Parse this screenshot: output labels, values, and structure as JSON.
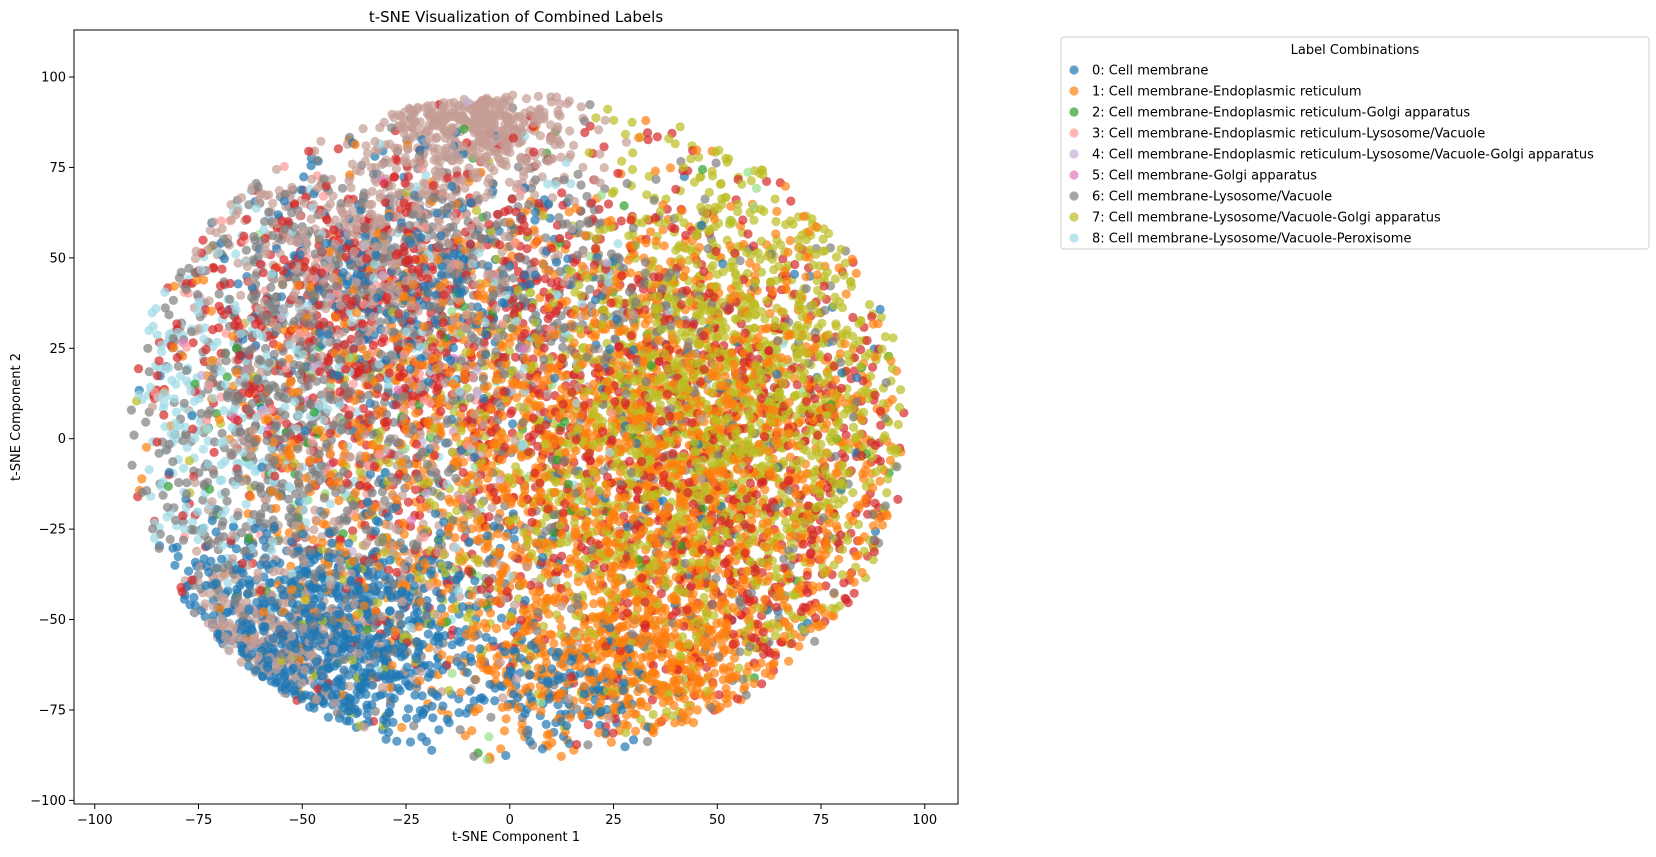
{
  "chart_data": {
    "type": "scatter",
    "title": "t-SNE Visualization of Combined Labels",
    "xlabel": "t-SNE Component 1",
    "ylabel": "t-SNE Component 2",
    "xlim": [
      -105,
      108
    ],
    "ylim": [
      -101,
      113
    ],
    "x_ticks": [
      -100,
      -75,
      -50,
      -25,
      0,
      25,
      50,
      75,
      100
    ],
    "y_ticks": [
      -100,
      -75,
      -50,
      -25,
      0,
      25,
      50,
      75,
      100
    ],
    "grid": false,
    "legend": {
      "title": "Label Combinations",
      "placement": "outside-upper-right"
    },
    "marker_alpha": 0.7,
    "series": [
      {
        "name": "0: Cell membrane",
        "color": "#1f77b4",
        "clusters": [
          {
            "cx": -48,
            "cy": -58,
            "sx": 22,
            "sy": 16,
            "n": 900
          },
          {
            "cx": -25,
            "cy": 45,
            "sx": 20,
            "sy": 15,
            "n": 300
          },
          {
            "cx": 15,
            "cy": -70,
            "sx": 10,
            "sy": 8,
            "n": 120
          },
          {
            "cx": 0,
            "cy": 0,
            "sx": 50,
            "sy": 45,
            "n": 200
          }
        ]
      },
      {
        "name": "1: Cell membrane-Endoplasmic reticulum",
        "color": "#ff7f0e",
        "clusters": [
          {
            "cx": 40,
            "cy": -10,
            "sx": 30,
            "sy": 35,
            "n": 1600
          },
          {
            "cx": -20,
            "cy": 0,
            "sx": 30,
            "sy": 30,
            "n": 600
          },
          {
            "cx": 30,
            "cy": -60,
            "sx": 20,
            "sy": 12,
            "n": 500
          }
        ]
      },
      {
        "name": "2: Cell membrane-Endoplasmic reticulum-Golgi apparatus",
        "color": "#2ca02c",
        "clusters": [
          {
            "cx": 0,
            "cy": 10,
            "sx": 55,
            "sy": 50,
            "n": 90
          }
        ]
      },
      {
        "name": "3: Cell membrane-Endoplasmic reticulum-Lysosome/Vacuole",
        "color": "#ff9896",
        "clusters": [
          {
            "cx": -35,
            "cy": 30,
            "sx": 30,
            "sy": 30,
            "n": 120
          }
        ]
      },
      {
        "name": "4: Cell membrane-Endoplasmic reticulum-Lysosome/Vacuole-Golgi apparatus",
        "color": "#c5b0d5",
        "clusters": [
          {
            "cx": -30,
            "cy": 20,
            "sx": 35,
            "sy": 35,
            "n": 40
          }
        ]
      },
      {
        "name": "5: Cell membrane-Golgi apparatus",
        "color": "#e377c2",
        "clusters": [
          {
            "cx": -55,
            "cy": 20,
            "sx": 25,
            "sy": 25,
            "n": 15
          }
        ]
      },
      {
        "name": "6: Cell membrane-Lysosome/Vacuole",
        "color": "#7f7f7f",
        "clusters": [
          {
            "cx": -55,
            "cy": 5,
            "sx": 22,
            "sy": 35,
            "n": 700
          },
          {
            "cx": 0,
            "cy": 45,
            "sx": 30,
            "sy": 18,
            "n": 350
          },
          {
            "cx": 30,
            "cy": -20,
            "sx": 40,
            "sy": 40,
            "n": 300
          }
        ]
      },
      {
        "name": "7: Cell membrane-Lysosome/Vacuole-Golgi apparatus",
        "color": "#bcbd22",
        "clusters": [
          {
            "cx": 55,
            "cy": 10,
            "sx": 22,
            "sy": 35,
            "n": 1500
          },
          {
            "cx": 5,
            "cy": -20,
            "sx": 30,
            "sy": 30,
            "n": 400
          }
        ]
      },
      {
        "name": "8: Cell membrane-Lysosome/Vacuole-Peroxisome",
        "color": "#9edae5",
        "clusters": [
          {
            "cx": -70,
            "cy": 10,
            "sx": 15,
            "sy": 30,
            "n": 250
          },
          {
            "cx": -20,
            "cy": 20,
            "sx": 30,
            "sy": 30,
            "n": 150
          }
        ]
      },
      {
        "name": "",
        "color": "#c49c94",
        "clusters": [
          {
            "cx": -8,
            "cy": 88,
            "sx": 12,
            "sy": 9,
            "n": 450
          },
          {
            "cx": -35,
            "cy": 55,
            "sx": 20,
            "sy": 15,
            "n": 400
          },
          {
            "cx": -60,
            "cy": -55,
            "sx": 15,
            "sy": 10,
            "n": 250
          },
          {
            "cx": -30,
            "cy": 0,
            "sx": 30,
            "sy": 35,
            "n": 300
          }
        ]
      },
      {
        "name": "",
        "color": "#d62728",
        "clusters": [
          {
            "cx": 0,
            "cy": 15,
            "sx": 40,
            "sy": 40,
            "n": 900
          },
          {
            "cx": 60,
            "cy": -20,
            "sx": 25,
            "sy": 40,
            "n": 500
          },
          {
            "cx": -40,
            "cy": 30,
            "sx": 25,
            "sy": 20,
            "n": 300
          }
        ]
      },
      {
        "name": "",
        "color": "#98df8a",
        "clusters": [
          {
            "cx": 0,
            "cy": 0,
            "sx": 50,
            "sy": 45,
            "n": 60
          }
        ]
      }
    ]
  }
}
